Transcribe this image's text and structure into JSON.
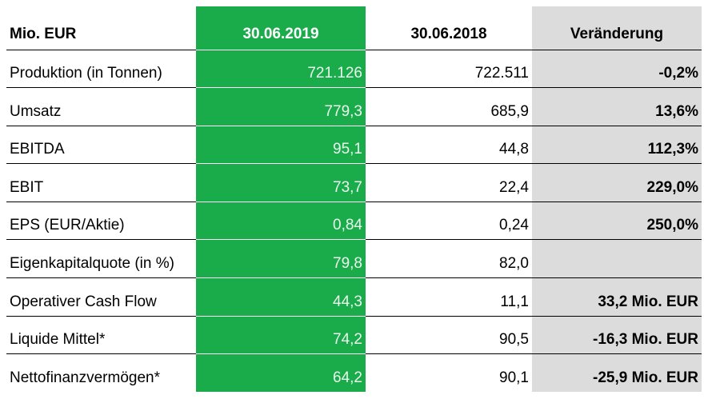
{
  "table": {
    "header": [
      "Mio. EUR",
      "30.06.2019",
      "30.06.2018",
      "Veränderung"
    ],
    "rows": [
      {
        "label": "Produktion (in Tonnen)",
        "current": "721.126",
        "previous": "722.511",
        "change": "-0,2%"
      },
      {
        "label": "Umsatz",
        "current": "779,3",
        "previous": "685,9",
        "change": "13,6%"
      },
      {
        "label": "EBITDA",
        "current": "95,1",
        "previous": "44,8",
        "change": "112,3%"
      },
      {
        "label": "EBIT",
        "current": "73,7",
        "previous": "22,4",
        "change": "229,0%"
      },
      {
        "label": "EPS (EUR/Aktie)",
        "current": "0,84",
        "previous": "0,24",
        "change": "250,0%"
      },
      {
        "label": "Eigenkapitalquote (in %)",
        "current": "79,8",
        "previous": "82,0"
      },
      {
        "label": "Operativer Cash Flow",
        "current": "44,3",
        "previous": "11,1",
        "change": "33,2 Mio. EUR"
      },
      {
        "label": "Liquide Mittel*",
        "current": "74,2",
        "previous": "90,5",
        "change": "-16,3 Mio. EUR"
      },
      {
        "label": "Nettofinanzvermögen*",
        "current": "64,2",
        "previous": "90,1",
        "change": "-25,9 Mio. EUR"
      }
    ]
  }
}
